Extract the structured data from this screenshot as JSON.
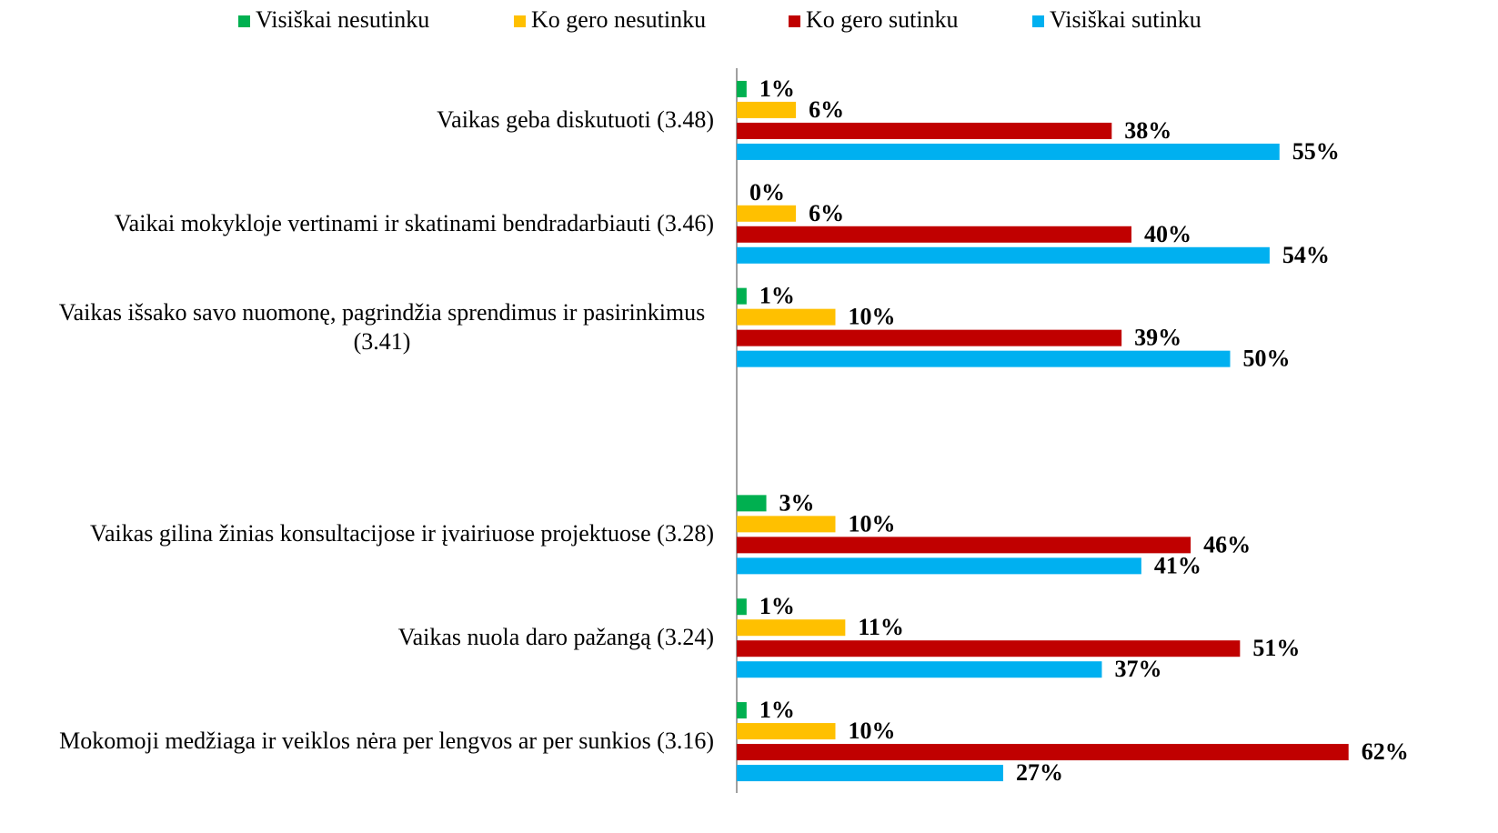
{
  "chart_data": {
    "type": "bar",
    "orientation": "horizontal",
    "categories": [
      "Vaikas  geba diskutuoti (3.48)",
      "Vaikai mokykloje vertinami ir skatinami bendradarbiauti (3.46)",
      "Vaikas išsako savo nuomonę, pagrindžia sprendimus ir pasirinkimus (3.41)",
      null,
      "Vaikas gilina žinias konsultacijose ir įvairiuose projektuose (3.28)",
      "Vaikas nuola daro pažangą (3.24)",
      "Mokomoji medžiaga ir veiklos nėra per lengvos ar per sunkios (3.16)"
    ],
    "series": [
      {
        "name": "Visiškai nesutinku",
        "color": "#00b050",
        "values": [
          1,
          0,
          1,
          null,
          3,
          1,
          1
        ],
        "value_labels": [
          "1%",
          "0%",
          "1%",
          null,
          "3%",
          "1%",
          "1%"
        ]
      },
      {
        "name": "Ko gero nesutinku",
        "color": "#ffc000",
        "values": [
          6,
          6,
          10,
          null,
          10,
          11,
          10
        ],
        "value_labels": [
          "6%",
          "6%",
          "10%",
          null,
          "10%",
          "11%",
          "10%"
        ]
      },
      {
        "name": "Ko gero sutinku",
        "color": "#c00000",
        "values": [
          38,
          40,
          39,
          null,
          46,
          51,
          62
        ],
        "value_labels": [
          "38%",
          "40%",
          "39%",
          null,
          "46%",
          "51%",
          "62%"
        ]
      },
      {
        "name": "Visiškai sutinku",
        "color": "#00b0f0",
        "values": [
          55,
          54,
          50,
          null,
          41,
          37,
          27
        ],
        "value_labels": [
          "55%",
          "54%",
          "50%",
          null,
          "41%",
          "37%",
          "27%"
        ]
      }
    ],
    "legend": "top"
  }
}
